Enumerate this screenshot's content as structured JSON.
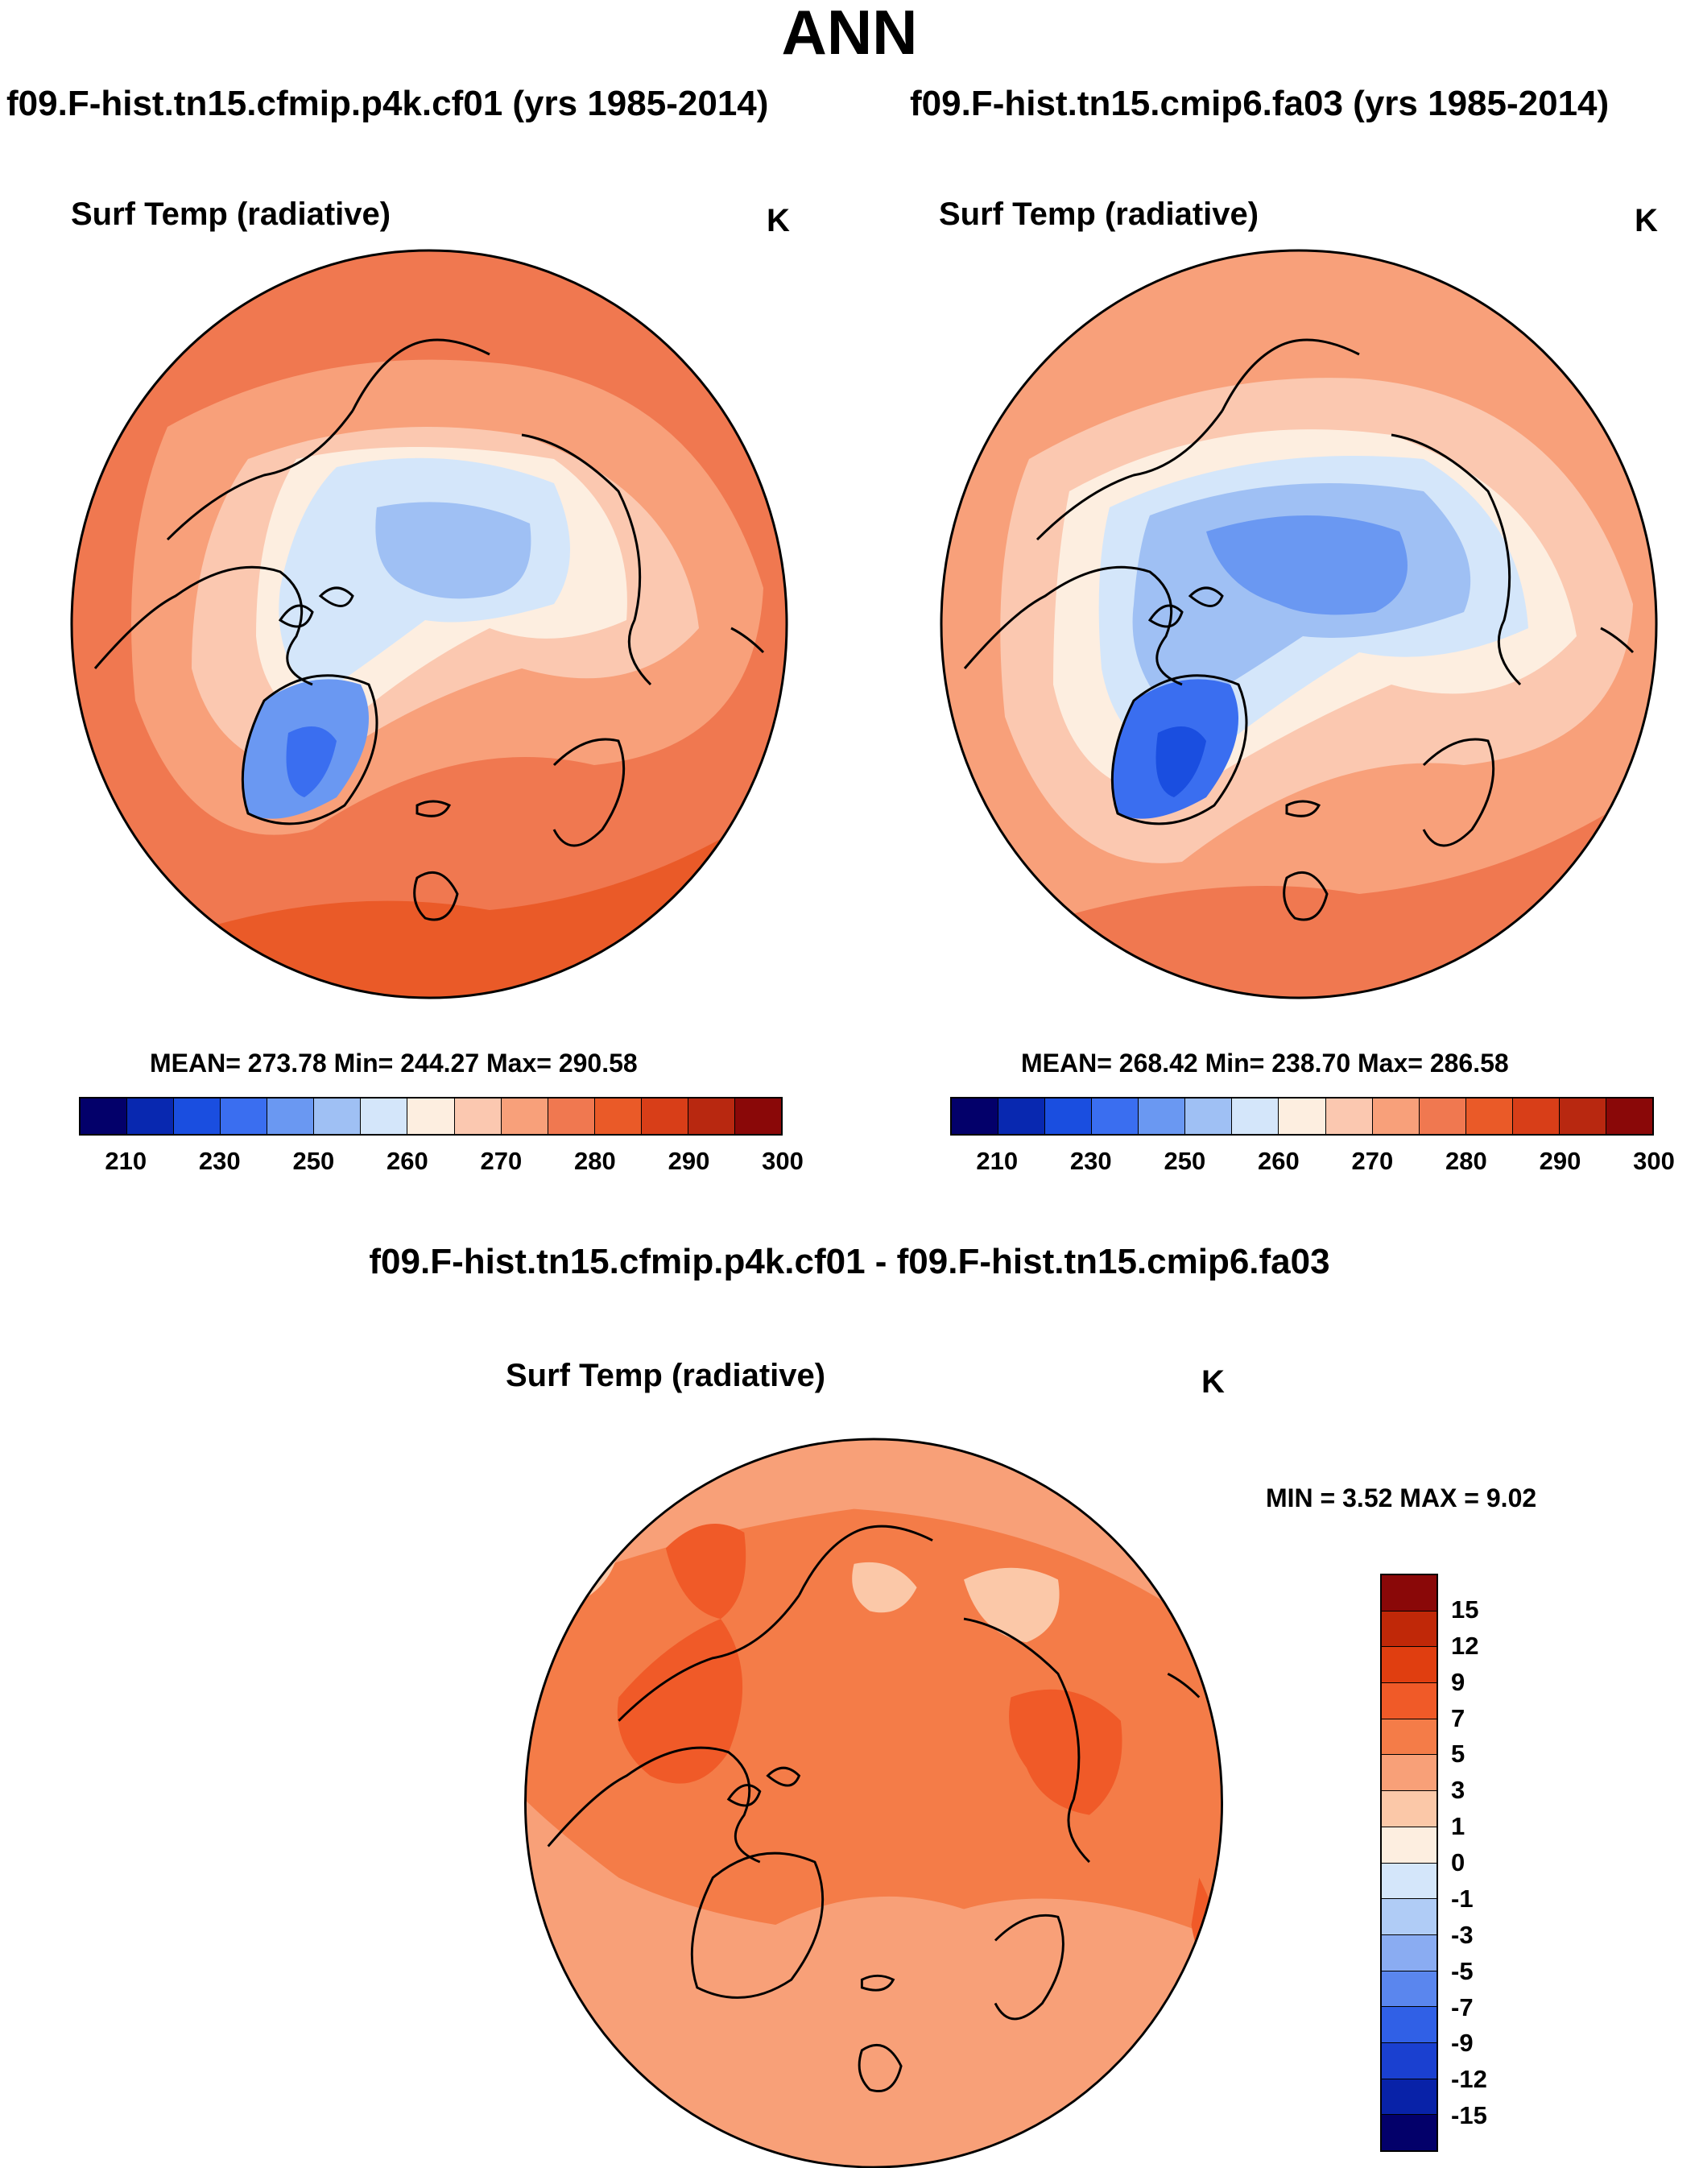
{
  "chart_data": [
    {
      "type": "heatmap",
      "title": "ANN",
      "case": "f09.F-hist.tn15.cfmip.p4k.cf01 (yrs 1985-2014)",
      "variable": "Surf Temp (radiative)",
      "units": "K",
      "stats": "MEAN= 273.78  Min= 244.27  Max= 290.58",
      "colorbar_ticks": [
        "210",
        "230",
        "250",
        "260",
        "270",
        "280",
        "290",
        "300"
      ],
      "colorbar_colors": [
        "#03006a",
        "#0828b0",
        "#1a4ee0",
        "#3a6ef0",
        "#6a98f2",
        "#9fc0f4",
        "#d4e6fa",
        "#fdeee0",
        "#fbc8b0",
        "#f8a07a",
        "#f07850",
        "#ea5a28",
        "#d83e18",
        "#b82810",
        "#8a0808"
      ]
    },
    {
      "type": "heatmap",
      "case": "f09.F-hist.tn15.cmip6.fa03 (yrs 1985-2014)",
      "variable": "Surf Temp (radiative)",
      "units": "K",
      "stats": "MEAN= 268.42  Min= 238.70  Max= 286.58",
      "colorbar_ticks": [
        "210",
        "230",
        "250",
        "260",
        "270",
        "280",
        "290",
        "300"
      ]
    },
    {
      "type": "heatmap",
      "case": "f09.F-hist.tn15.cfmip.p4k.cf01 - f09.F-hist.tn15.cmip6.fa03",
      "variable": "Surf Temp (radiative)",
      "units": "K",
      "stats": "MIN =   3.52 MAX =   9.02",
      "colorbar_ticks": [
        "15",
        "12",
        "9",
        "7",
        "5",
        "3",
        "1",
        "0",
        "-1",
        "-3",
        "-5",
        "-7",
        "-9",
        "-12",
        "-15"
      ],
      "colorbar_colors": [
        "#8a0808",
        "#c02808",
        "#e03e10",
        "#f05a28",
        "#f47c48",
        "#f8a078",
        "#fbc8a8",
        "#fdeee0",
        "#d4e6fa",
        "#b0ccf6",
        "#8aacf2",
        "#5a86ee",
        "#3060e6",
        "#1a40d0",
        "#0822a8",
        "#03006a"
      ]
    }
  ]
}
